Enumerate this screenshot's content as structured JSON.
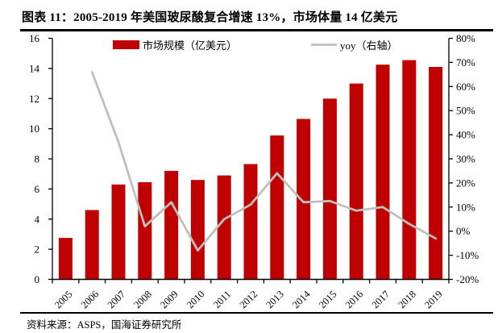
{
  "header": {
    "title": "图表 11：2005-2019 年美国玻尿酸复合增速 13%，市场体量 14 亿美元"
  },
  "colors": {
    "bar": "#C00000",
    "line": "#BFBFBF",
    "axis": "#000000"
  },
  "chart_data": {
    "type": "bar",
    "categories": [
      "2005",
      "2006",
      "2007",
      "2008",
      "2009",
      "2010",
      "2011",
      "2012",
      "2013",
      "2014",
      "2015",
      "2016",
      "2017",
      "2018",
      "2019"
    ],
    "series": [
      {
        "name": "市场规模（亿美元）",
        "type": "bar",
        "axis": "left",
        "color": "#C00000",
        "values": [
          2.75,
          4.6,
          6.3,
          6.45,
          7.2,
          6.6,
          6.9,
          7.65,
          9.55,
          10.65,
          12.0,
          13.0,
          14.25,
          14.55,
          14.1
        ]
      },
      {
        "name": "yoy（右轴）",
        "type": "line",
        "axis": "right",
        "color": "#BFBFBF",
        "values": [
          null,
          66,
          37,
          2,
          12,
          -8,
          5,
          11,
          24,
          12,
          12.5,
          8.5,
          10,
          3,
          -3
        ]
      }
    ],
    "left_axis": {
      "min": 0,
      "max": 16,
      "ticks": [
        0,
        2,
        4,
        6,
        8,
        10,
        12,
        14,
        16
      ],
      "labels": [
        "0",
        "2",
        "4",
        "6",
        "8",
        "10",
        "12",
        "14",
        "16"
      ]
    },
    "right_axis": {
      "min": -20,
      "max": 80,
      "ticks": [
        -20,
        -10,
        0,
        10,
        20,
        30,
        40,
        50,
        60,
        70,
        80
      ],
      "labels": [
        "-20%",
        "-10%",
        "0%",
        "10%",
        "20%",
        "30%",
        "40%",
        "50%",
        "60%",
        "70%",
        "80%"
      ]
    },
    "grid": false,
    "legend_position": "top-inside"
  },
  "footer": {
    "source": "资料来源：ASPS，国海证券研究所"
  }
}
